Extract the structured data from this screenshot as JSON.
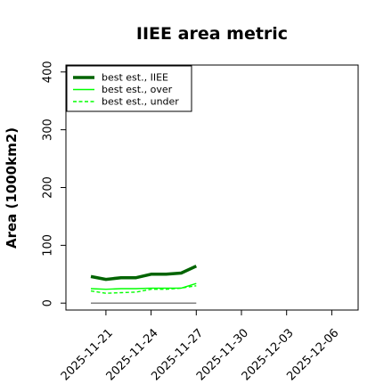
{
  "chart_data": {
    "type": "line",
    "title": "IIEE area metric",
    "xlabel": "",
    "ylabel": "Area (1000km2)",
    "x_ticks": [
      "2025-11-21",
      "2025-11-24",
      "2025-11-27",
      "2025-11-30",
      "2025-12-03",
      "2025-12-06"
    ],
    "y_ticks": [
      "0",
      "100",
      "200",
      "300",
      "400"
    ],
    "xlim": [
      "2025-11-20",
      "2025-12-07"
    ],
    "ylim": [
      -12,
      412
    ],
    "grid": false,
    "legend_position": "top-left",
    "x": [
      "2025-11-20",
      "2025-11-21",
      "2025-11-22",
      "2025-11-23",
      "2025-11-24",
      "2025-11-25",
      "2025-11-26",
      "2025-11-27"
    ],
    "series": [
      {
        "name": "best est., IIEE",
        "color": "#006400",
        "style": "solid-thick",
        "values": [
          46,
          41,
          44,
          44,
          50,
          50,
          52,
          64
        ]
      },
      {
        "name": "best est., over",
        "color": "#00ff00",
        "style": "solid-thin",
        "values": [
          25,
          24,
          25,
          25,
          26,
          26,
          26,
          34
        ]
      },
      {
        "name": "best est., under",
        "color": "#00ff00",
        "style": "dashed",
        "values": [
          21,
          17,
          18,
          19,
          24,
          24,
          26,
          30
        ]
      }
    ],
    "baseline": {
      "color": "#808080",
      "value": 0,
      "x_range": [
        "2025-11-20",
        "2025-11-27"
      ]
    }
  }
}
